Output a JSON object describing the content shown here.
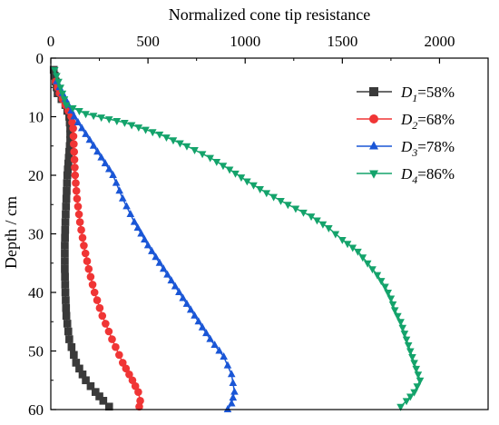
{
  "chart_data": {
    "type": "scatter",
    "xlabel": "Normalized cone tip resistance",
    "ylabel": "Depth / cm",
    "xlim": [
      0,
      2250
    ],
    "ylim": [
      60,
      0
    ],
    "x_ticks": [
      0,
      500,
      1000,
      1500,
      2000
    ],
    "y_ticks": [
      0,
      10,
      20,
      30,
      40,
      50,
      60
    ],
    "x_axis_position": "top",
    "y_axis_inverted": true,
    "grid": false,
    "legend_position": "top-right",
    "series": [
      {
        "label_parts": [
          "D",
          "1",
          "=58%"
        ],
        "color": "#3a3a3a",
        "marker": "square",
        "points": [
          [
            15,
            2
          ],
          [
            25,
            4
          ],
          [
            35,
            6
          ],
          [
            55,
            7
          ],
          [
            75,
            8
          ],
          [
            85,
            9
          ],
          [
            95,
            10
          ],
          [
            100,
            12
          ],
          [
            100,
            14
          ],
          [
            95,
            16
          ],
          [
            90,
            18
          ],
          [
            85,
            20
          ],
          [
            80,
            24
          ],
          [
            75,
            28
          ],
          [
            72,
            32
          ],
          [
            72,
            36
          ],
          [
            75,
            40
          ],
          [
            80,
            44
          ],
          [
            95,
            48
          ],
          [
            130,
            52
          ],
          [
            180,
            55
          ],
          [
            230,
            57
          ],
          [
            270,
            58.5
          ],
          [
            300,
            59.5
          ]
        ]
      },
      {
        "label_parts": [
          "D",
          "2",
          "=68%"
        ],
        "color": "#f03535",
        "marker": "circle",
        "points": [
          [
            25,
            4
          ],
          [
            45,
            6
          ],
          [
            75,
            8
          ],
          [
            105,
            10
          ],
          [
            115,
            12
          ],
          [
            120,
            16
          ],
          [
            125,
            20
          ],
          [
            135,
            24
          ],
          [
            150,
            28
          ],
          [
            170,
            32
          ],
          [
            195,
            36
          ],
          [
            225,
            40
          ],
          [
            265,
            44
          ],
          [
            315,
            48
          ],
          [
            370,
            52
          ],
          [
            420,
            55
          ],
          [
            450,
            57
          ],
          [
            460,
            58.5
          ],
          [
            455,
            59.5
          ]
        ]
      },
      {
        "label_parts": [
          "D",
          "3",
          "=78%"
        ],
        "color": "#1a56d6",
        "marker": "triangle-up",
        "points": [
          [
            30,
            4
          ],
          [
            60,
            6
          ],
          [
            90,
            8
          ],
          [
            120,
            10
          ],
          [
            160,
            12
          ],
          [
            200,
            14
          ],
          [
            240,
            16
          ],
          [
            280,
            18
          ],
          [
            320,
            20
          ],
          [
            370,
            24
          ],
          [
            430,
            28
          ],
          [
            500,
            32
          ],
          [
            580,
            36
          ],
          [
            660,
            40
          ],
          [
            740,
            44
          ],
          [
            820,
            48
          ],
          [
            890,
            51
          ],
          [
            930,
            54
          ],
          [
            945,
            57
          ],
          [
            930,
            59
          ],
          [
            910,
            60
          ]
        ]
      },
      {
        "label_parts": [
          "D",
          "4",
          "=86%"
        ],
        "color": "#14a36b",
        "marker": "triangle-down",
        "points": [
          [
            20,
            2
          ],
          [
            40,
            4
          ],
          [
            60,
            6
          ],
          [
            80,
            8
          ],
          [
            180,
            9.5
          ],
          [
            380,
            11
          ],
          [
            560,
            13
          ],
          [
            700,
            15
          ],
          [
            820,
            17
          ],
          [
            920,
            19
          ],
          [
            1010,
            21
          ],
          [
            1110,
            23
          ],
          [
            1220,
            25
          ],
          [
            1340,
            27
          ],
          [
            1430,
            29
          ],
          [
            1500,
            31
          ],
          [
            1580,
            33
          ],
          [
            1630,
            35
          ],
          [
            1680,
            37
          ],
          [
            1720,
            39
          ],
          [
            1750,
            41
          ],
          [
            1770,
            43
          ],
          [
            1800,
            45
          ],
          [
            1820,
            47
          ],
          [
            1840,
            49
          ],
          [
            1860,
            51
          ],
          [
            1880,
            53
          ],
          [
            1900,
            55
          ],
          [
            1870,
            57
          ],
          [
            1830,
            58.5
          ],
          [
            1800,
            59.5
          ]
        ]
      }
    ]
  }
}
